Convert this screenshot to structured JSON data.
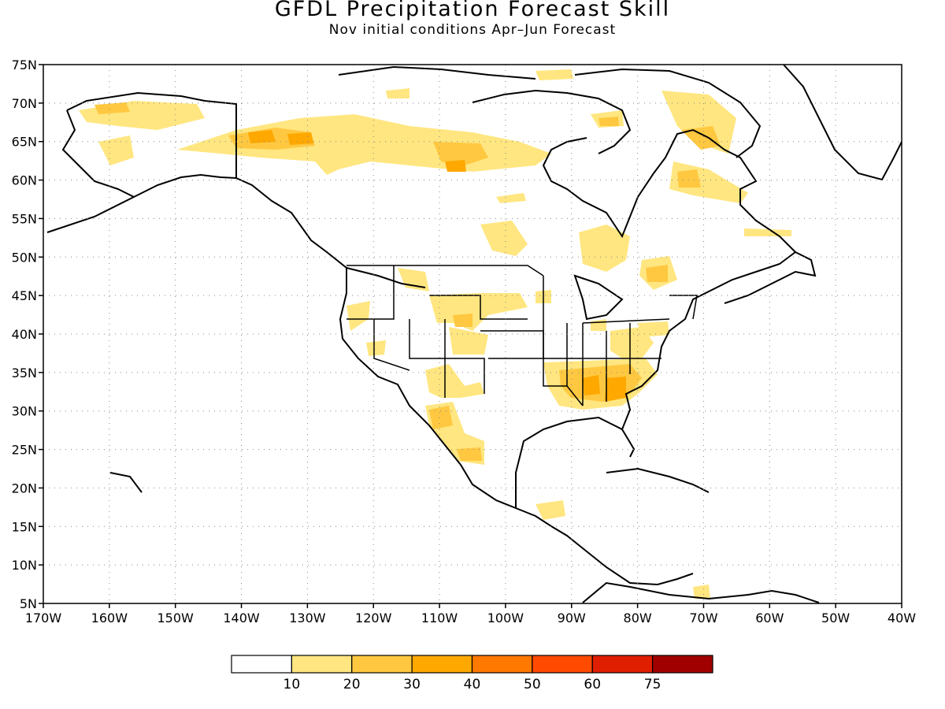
{
  "title": "GFDL Precipitation Forecast Skill",
  "subtitle": "Nov initial conditions  Apr–Jun Forecast",
  "map": {
    "lat_ticks": [
      "75N",
      "70N",
      "65N",
      "60N",
      "55N",
      "50N",
      "45N",
      "40N",
      "35N",
      "30N",
      "25N",
      "20N",
      "15N",
      "10N",
      "5N"
    ],
    "lon_ticks": [
      "170W",
      "160W",
      "150W",
      "140W",
      "130W",
      "120W",
      "110W",
      "100W",
      "90W",
      "80W",
      "70W",
      "60W",
      "50W",
      "40W"
    ],
    "lat_range": [
      5,
      75
    ],
    "lon_range": [
      -170,
      -40
    ],
    "gridlines": "dotted"
  },
  "colorbar": {
    "labels": [
      "10",
      "20",
      "30",
      "40",
      "50",
      "60",
      "75"
    ],
    "colors": [
      "#ffffff",
      "#ffe680",
      "#ffc840",
      "#ffa800",
      "#ff7800",
      "#ff4a00",
      "#e01e00",
      "#a00000"
    ]
  },
  "skill_regions": [
    {
      "name": "alaska-north-slope",
      "lon": -155,
      "lat": 68.5,
      "level": 2
    },
    {
      "name": "yukon-nwt",
      "lon": -132,
      "lat": 64.5,
      "level": 3
    },
    {
      "name": "central-nwt",
      "lon": -112,
      "lat": 62.5,
      "level": 3
    },
    {
      "name": "baffin-island",
      "lon": -70,
      "lat": 66,
      "level": 2
    },
    {
      "name": "labrador",
      "lon": -68,
      "lat": 58,
      "level": 2
    },
    {
      "name": "quebec-south",
      "lon": -78,
      "lat": 47,
      "level": 2
    },
    {
      "name": "southeast-us",
      "lon": -86,
      "lat": 32.5,
      "level": 3
    },
    {
      "name": "northern-rockies",
      "lon": -110,
      "lat": 43,
      "level": 2
    },
    {
      "name": "california",
      "lon": -122,
      "lat": 40,
      "level": 2
    },
    {
      "name": "sonora",
      "lon": -109,
      "lat": 27,
      "level": 2
    },
    {
      "name": "great-lakes-east",
      "lon": -82,
      "lat": 40,
      "level": 1
    },
    {
      "name": "central-america",
      "lon": -90,
      "lat": 16,
      "level": 1
    }
  ]
}
